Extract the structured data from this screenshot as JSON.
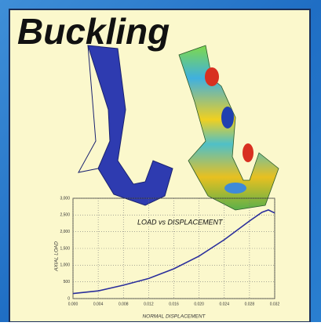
{
  "title": "Buckling",
  "chart_data": {
    "type": "line",
    "title": "LOAD vs DISPLACEMENT",
    "xlabel": "NORMAL DISPLACEMENT",
    "ylabel": "AXIAL LOAD",
    "x": [
      0,
      0.004,
      0.008,
      0.012,
      0.016,
      0.02,
      0.024,
      0.028,
      0.03,
      0.031,
      0.032
    ],
    "values": [
      150,
      230,
      400,
      600,
      890,
      1270,
      1760,
      2320,
      2580,
      2650,
      2560
    ],
    "color": "#2b2f9c",
    "xlim": [
      0,
      0.032
    ],
    "xticks": [
      {
        "value": 0,
        "label": "0.000"
      },
      {
        "value": 0.004,
        "label": "0.004"
      },
      {
        "value": 0.008,
        "label": "0.008"
      },
      {
        "value": 0.012,
        "label": "0.012"
      },
      {
        "value": 0.016,
        "label": "0.016"
      },
      {
        "value": 0.02,
        "label": "0.020"
      },
      {
        "value": 0.024,
        "label": "0.024"
      },
      {
        "value": 0.028,
        "label": "0.028"
      },
      {
        "value": 0.032,
        "label": "0.032"
      }
    ],
    "ylim": [
      0,
      3000
    ],
    "yticks": [
      0,
      500,
      {
        "value": 1000,
        "label": "1,000"
      },
      {
        "value": 1500,
        "label": "1,500"
      },
      {
        "value": 2000,
        "label": "2,000"
      },
      {
        "value": 2500,
        "label": "2,500"
      },
      {
        "value": 3000,
        "label": "3,000"
      }
    ],
    "grid": true
  }
}
